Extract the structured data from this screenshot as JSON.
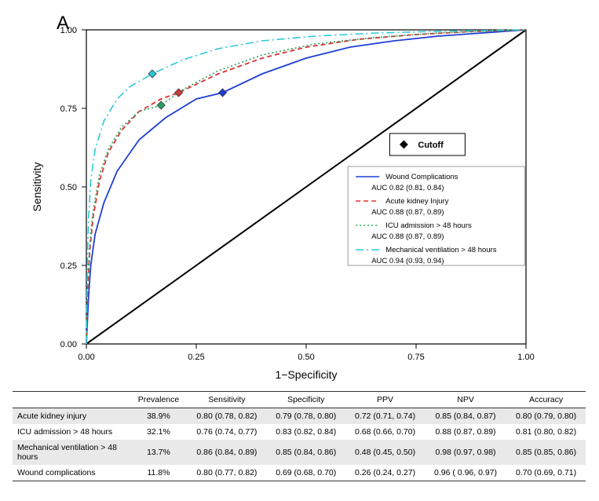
{
  "panel_label": "A",
  "chart": {
    "type": "roc",
    "xlabel": "1−Specificity",
    "ylabel": "Sensitivity",
    "xlim": [
      0,
      1
    ],
    "ylim": [
      0,
      1
    ],
    "ticks": [
      "0.00",
      "0.25",
      "0.50",
      "0.75",
      "1.00"
    ],
    "background_color": "#ffffff",
    "box_color": "#000000",
    "tick_fontsize": 11,
    "label_fontsize": 14,
    "diagonal": {
      "color": "#000000",
      "width": 2
    },
    "cutoff_legend": {
      "label": "Cutoff",
      "marker": "diamond",
      "marker_color": "#000000"
    },
    "series": [
      {
        "name": "Wound Complications",
        "auc_text": "AUC  0.82 (0.81, 0.84)",
        "color": "#1f3fd4",
        "dash": "solid",
        "width": 1.8,
        "cutoff": {
          "x": 0.31,
          "y": 0.8,
          "marker_color": "#1f3fd4"
        },
        "points": [
          [
            0,
            0
          ],
          [
            0.005,
            0.15
          ],
          [
            0.01,
            0.25
          ],
          [
            0.02,
            0.35
          ],
          [
            0.04,
            0.45
          ],
          [
            0.07,
            0.55
          ],
          [
            0.12,
            0.65
          ],
          [
            0.18,
            0.72
          ],
          [
            0.25,
            0.78
          ],
          [
            0.31,
            0.8
          ],
          [
            0.4,
            0.86
          ],
          [
            0.5,
            0.91
          ],
          [
            0.6,
            0.945
          ],
          [
            0.7,
            0.965
          ],
          [
            0.8,
            0.98
          ],
          [
            0.9,
            0.99
          ],
          [
            1,
            1
          ]
        ]
      },
      {
        "name": "Acute kidney Injury",
        "auc_text": "AUC  0.88 (0.87, 0.89)",
        "color": "#e03030",
        "dash": "6,4",
        "width": 1.8,
        "cutoff": {
          "x": 0.21,
          "y": 0.8,
          "marker_color": "#e03030"
        },
        "points": [
          [
            0,
            0
          ],
          [
            0.003,
            0.18
          ],
          [
            0.008,
            0.3
          ],
          [
            0.015,
            0.4
          ],
          [
            0.03,
            0.52
          ],
          [
            0.05,
            0.61
          ],
          [
            0.08,
            0.68
          ],
          [
            0.12,
            0.74
          ],
          [
            0.17,
            0.78
          ],
          [
            0.21,
            0.8
          ],
          [
            0.3,
            0.86
          ],
          [
            0.4,
            0.91
          ],
          [
            0.5,
            0.945
          ],
          [
            0.62,
            0.97
          ],
          [
            0.75,
            0.985
          ],
          [
            0.88,
            0.995
          ],
          [
            1,
            1
          ]
        ]
      },
      {
        "name": "ICU admission > 48 hours",
        "auc_text": "AUC  0.88 (0.87, 0.89)",
        "color": "#2aa060",
        "dash": "2,3",
        "width": 1.6,
        "cutoff": {
          "x": 0.17,
          "y": 0.76,
          "marker_color": "#2aa060"
        },
        "points": [
          [
            0,
            0
          ],
          [
            0.003,
            0.2
          ],
          [
            0.008,
            0.32
          ],
          [
            0.015,
            0.42
          ],
          [
            0.03,
            0.54
          ],
          [
            0.05,
            0.62
          ],
          [
            0.08,
            0.69
          ],
          [
            0.12,
            0.74
          ],
          [
            0.17,
            0.76
          ],
          [
            0.22,
            0.81
          ],
          [
            0.3,
            0.87
          ],
          [
            0.4,
            0.92
          ],
          [
            0.52,
            0.955
          ],
          [
            0.65,
            0.975
          ],
          [
            0.8,
            0.99
          ],
          [
            1,
            1
          ]
        ]
      },
      {
        "name": "Mechanical ventilation > 48 hours",
        "auc_text": "AUC  0.94 (0.93, 0.94)",
        "color": "#2fc8d8",
        "dash": "10,4,2,4",
        "width": 1.6,
        "cutoff": {
          "x": 0.15,
          "y": 0.86,
          "marker_color": "#2fc8d8"
        },
        "points": [
          [
            0,
            0
          ],
          [
            0.002,
            0.25
          ],
          [
            0.005,
            0.4
          ],
          [
            0.01,
            0.52
          ],
          [
            0.02,
            0.62
          ],
          [
            0.04,
            0.71
          ],
          [
            0.07,
            0.78
          ],
          [
            0.1,
            0.82
          ],
          [
            0.15,
            0.86
          ],
          [
            0.22,
            0.905
          ],
          [
            0.3,
            0.94
          ],
          [
            0.4,
            0.965
          ],
          [
            0.52,
            0.98
          ],
          [
            0.66,
            0.99
          ],
          [
            0.82,
            0.996
          ],
          [
            1,
            1
          ]
        ]
      }
    ]
  },
  "table": {
    "columns": [
      "",
      "Prevalence",
      "Sensitivity",
      "Specificity",
      "PPV",
      "NPV",
      "Accuracy"
    ],
    "rows": [
      {
        "shade": true,
        "cells": [
          "Acute kidney injury",
          "38.9%",
          "0.80 (0.78, 0.82)",
          "0.79 (0.78, 0.80)",
          "0.72 (0.71, 0.74)",
          "0.85 (0.84, 0.87)",
          "0.80 (0.79, 0.80)"
        ]
      },
      {
        "shade": false,
        "cells": [
          "ICU admission > 48 hours",
          "32.1%",
          "0.76 (0.74, 0.77)",
          "0.83 (0.82, 0.84)",
          "0.68 (0.66, 0.70)",
          "0.88 (0.87, 0.89)",
          "0.81 (0.80, 0.82)"
        ]
      },
      {
        "shade": true,
        "cells": [
          "Mechanical ventilation > 48 hours",
          "13.7%",
          "0.86 (0.84, 0.89)",
          "0.85 (0.84, 0.86)",
          "0.48 (0.45, 0.50)",
          "0.98 (0.97, 0.98)",
          "0.85 (0.85, 0.86)"
        ]
      },
      {
        "shade": false,
        "cells": [
          "Wound complications",
          "11.8%",
          "0.80 (0.77, 0.82)",
          "0.69 (0.68, 0.70)",
          "0.26 (0.24, 0.27)",
          "0.96 ( 0.96, 0.97)",
          "0.70 (0.69, 0.71)"
        ]
      }
    ]
  }
}
